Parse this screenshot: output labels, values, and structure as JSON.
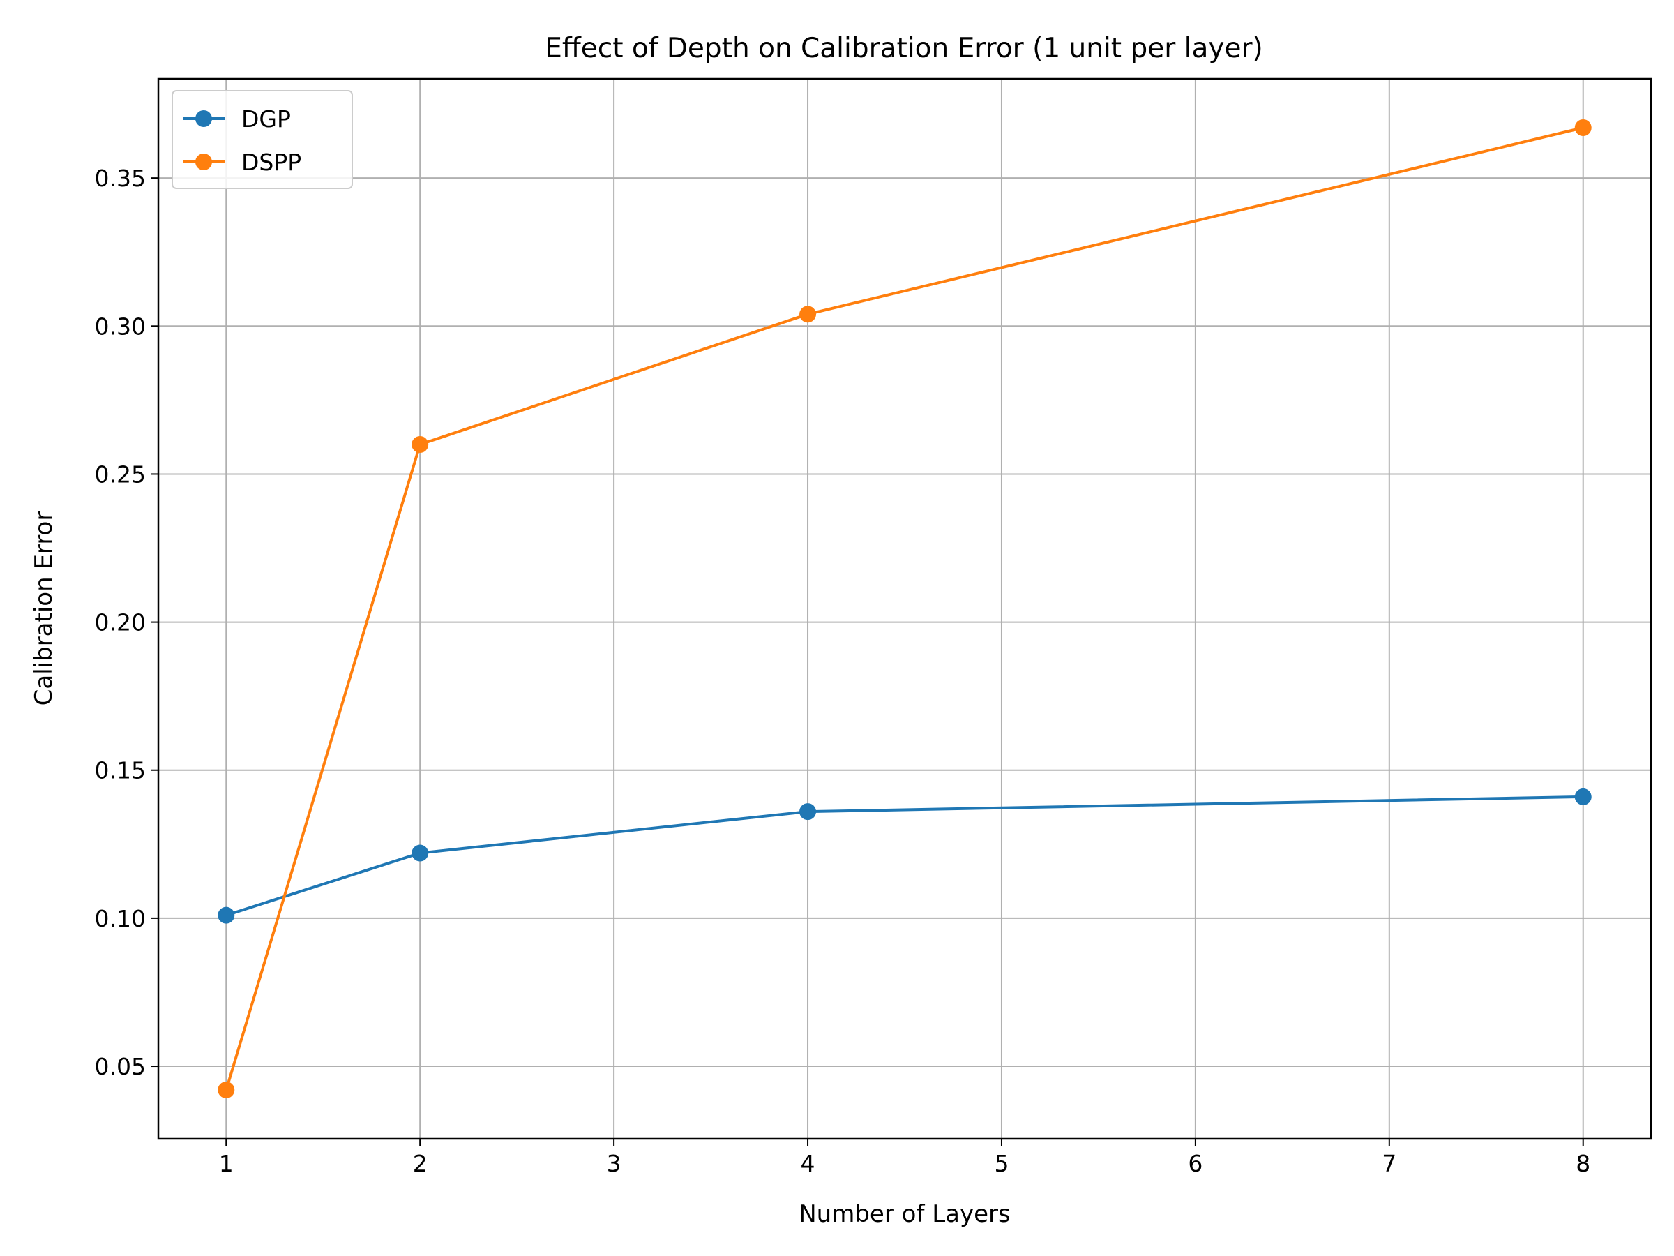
{
  "chart_data": {
    "type": "line",
    "title": "Effect of Depth on Calibration Error (1 unit per layer)",
    "xlabel": "Number of Layers",
    "ylabel": "Calibration Error",
    "x": [
      1,
      2,
      4,
      8
    ],
    "xticks": [
      1,
      2,
      3,
      4,
      5,
      6,
      7,
      8
    ],
    "xtick_labels": [
      "1",
      "2",
      "3",
      "4",
      "5",
      "6",
      "7",
      "8"
    ],
    "yticks": [
      0.05,
      0.1,
      0.15,
      0.2,
      0.25,
      0.3,
      0.35
    ],
    "ytick_labels": [
      "0.05",
      "0.10",
      "0.15",
      "0.20",
      "0.25",
      "0.30",
      "0.35"
    ],
    "xlim": [
      0.65,
      8.35
    ],
    "ylim": [
      0.0255,
      0.3835
    ],
    "grid": true,
    "legend_position": "upper-left",
    "series": [
      {
        "name": "DGP",
        "color": "#1f77b4",
        "marker": "circle",
        "values": [
          0.101,
          0.122,
          0.136,
          0.141
        ]
      },
      {
        "name": "DSPP",
        "color": "#ff7f0e",
        "marker": "circle",
        "values": [
          0.042,
          0.26,
          0.304,
          0.367
        ]
      }
    ]
  }
}
